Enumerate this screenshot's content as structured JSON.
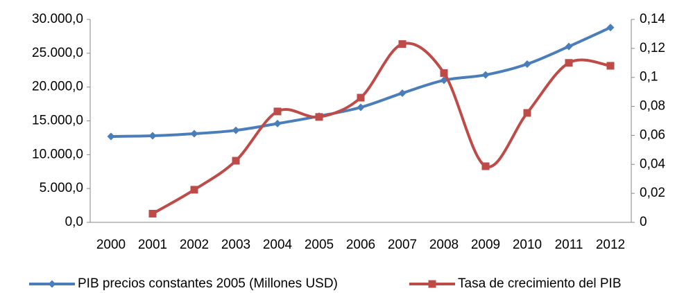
{
  "chart_data": {
    "type": "line",
    "categories": [
      "2000",
      "2001",
      "2002",
      "2003",
      "2004",
      "2005",
      "2006",
      "2007",
      "2008",
      "2009",
      "2010",
      "2011",
      "2012"
    ],
    "series": [
      {
        "name": "PIB precios constantes 2005 (Millones USD)",
        "color": "#4a7ebb",
        "marker": "diamond",
        "values": [
          12700,
          12800,
          13100,
          13600,
          14600,
          15700,
          17000,
          19100,
          21000,
          21800,
          23400,
          26000,
          28800
        ]
      },
      {
        "name": "Tasa de crecimiento del PIB",
        "color": "#be4b48",
        "marker": "square",
        "axis": "y2",
        "values": [
          null,
          0.006,
          0.0225,
          0.0425,
          0.0765,
          0.0727,
          0.086,
          0.123,
          0.103,
          0.0387,
          0.0755,
          0.11,
          0.108
        ]
      }
    ],
    "ylim": [
      0,
      30000
    ],
    "yticks": [
      {
        "value": 0,
        "label": "0,0"
      },
      {
        "value": 5000,
        "label": "5.000,0"
      },
      {
        "value": 10000,
        "label": "10.000,0"
      },
      {
        "value": 15000,
        "label": "15.000,0"
      },
      {
        "value": 20000,
        "label": "20.000,0"
      },
      {
        "value": 25000,
        "label": "25.000,0"
      },
      {
        "value": 30000,
        "label": "30.000,0"
      }
    ],
    "y2lim": [
      0,
      0.14
    ],
    "y2ticks": [
      0,
      {
        "value": 0.02,
        "label": "0,02"
      },
      {
        "value": 0.04,
        "label": "0,04"
      },
      {
        "value": 0.06,
        "label": "0,06"
      },
      {
        "value": 0.08,
        "label": "0,08"
      },
      {
        "value": 0.1,
        "label": "0,1"
      },
      {
        "value": 0.12,
        "label": "0,12"
      },
      {
        "value": 0.14,
        "label": "0,14"
      }
    ],
    "smooth": true,
    "grid": false,
    "legend": "bottom"
  }
}
